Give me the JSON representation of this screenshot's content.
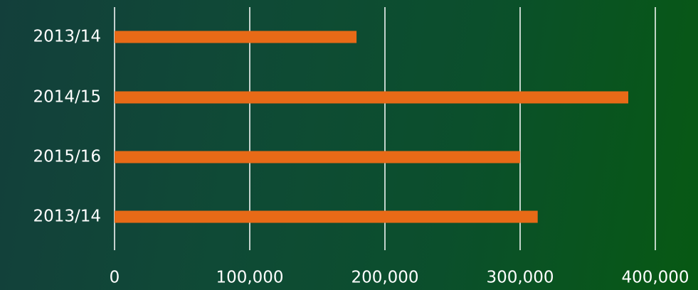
{
  "chart_data": {
    "type": "bar",
    "orientation": "horizontal",
    "categories": [
      "2013/14",
      "2014/15",
      "2015/16",
      "2013/14"
    ],
    "values": [
      179000,
      380000,
      300000,
      313000
    ],
    "xlim": [
      0,
      400000
    ],
    "x_ticks": [
      "0",
      "100,000",
      "200,000",
      "300,000",
      "400,000"
    ],
    "x_tick_values": [
      0,
      100000,
      200000,
      300000,
      400000
    ],
    "grid": "vertical",
    "colors": {
      "bar": "#e86a17",
      "text": "#ffffff",
      "grid": "#ffffff"
    }
  }
}
